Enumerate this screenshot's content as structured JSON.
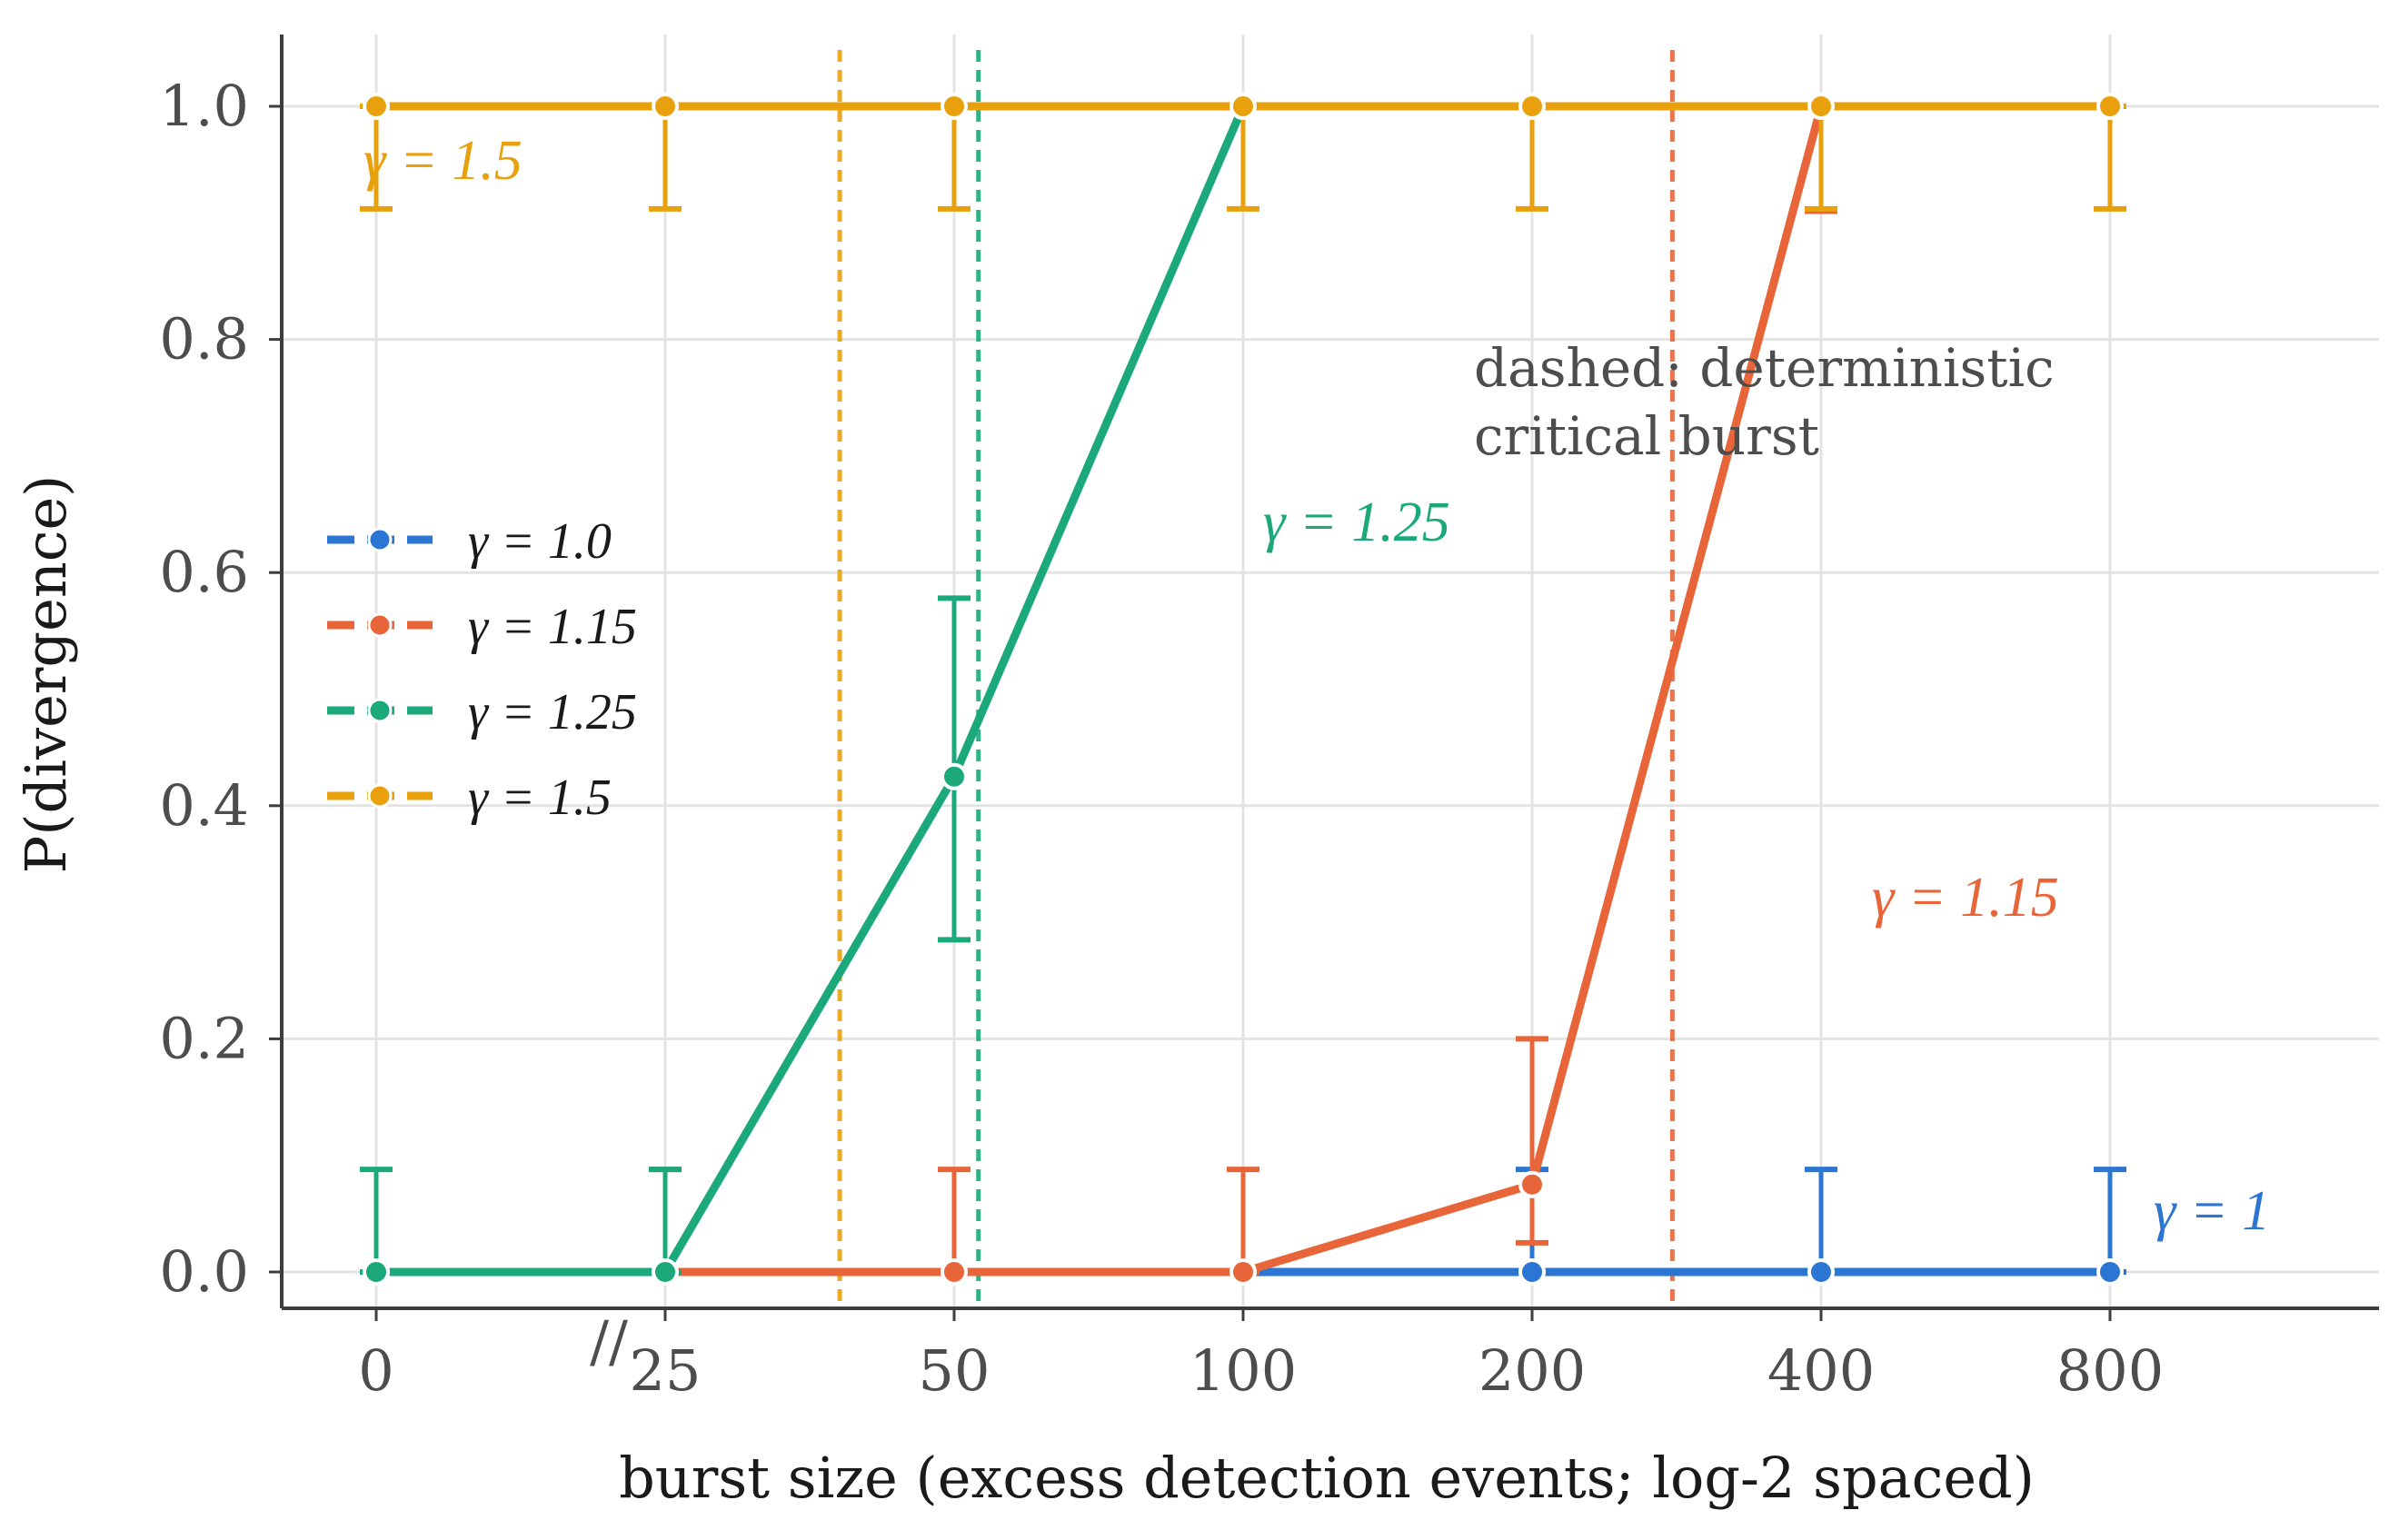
{
  "chart_data": {
    "type": "line",
    "xlabel": "burst size (excess detection events; log-2 spaced)",
    "ylabel": "P(divergence)",
    "x": [
      0,
      25,
      50,
      100,
      200,
      400,
      800
    ],
    "x_tick_labels": [
      "0",
      "25",
      "50",
      "100",
      "200",
      "400",
      "800"
    ],
    "x_axis_scale": "log2 with a broken-axis zero point",
    "axis_break_mark": "//",
    "ylim": [
      -0.03,
      1.06
    ],
    "y_ticks": [
      "0.0",
      "0.2",
      "0.4",
      "0.6",
      "0.8",
      "1.0"
    ],
    "grid": true,
    "legend_placement": "center-left",
    "series": [
      {
        "name": "γ = 1.0",
        "color": "#2B76D2",
        "x": [
          100,
          200,
          400,
          800
        ],
        "values": [
          0.0,
          0.0,
          0.0,
          0.0
        ],
        "err_lo": [
          0.0,
          0.0,
          0.0,
          0.0
        ],
        "err_hi": [
          0.0,
          0.088,
          0.088,
          0.088
        ],
        "inline_label": "γ = 1"
      },
      {
        "name": "γ = 1.15",
        "color": "#E8653A",
        "x": [
          25,
          50,
          100,
          200,
          400
        ],
        "values": [
          0.0,
          0.0,
          0.0,
          0.075,
          1.0
        ],
        "err_lo": [
          0.0,
          0.0,
          0.0,
          0.025,
          0.91
        ],
        "err_hi": [
          0.088,
          0.088,
          0.088,
          0.2,
          1.0
        ],
        "inline_label": "γ = 1.15",
        "critical_burst": 280
      },
      {
        "name": "γ = 1.25",
        "color": "#1BA97B",
        "x": [
          0,
          25,
          50,
          100
        ],
        "values": [
          0.0,
          0.0,
          0.425,
          1.0
        ],
        "err_lo": [
          0.0,
          0.0,
          0.285,
          1.0
        ],
        "err_hi": [
          0.088,
          0.088,
          0.578,
          1.0
        ],
        "inline_label": "γ = 1.25",
        "critical_burst": 53
      },
      {
        "name": "γ = 1.5",
        "color": "#E8A10C",
        "x": [
          0,
          25,
          50,
          100,
          200,
          400,
          800
        ],
        "values": [
          1.0,
          1.0,
          1.0,
          1.0,
          1.0,
          1.0,
          1.0
        ],
        "err_lo": [
          0.912,
          0.912,
          0.912,
          0.912,
          0.912,
          0.912,
          0.912
        ],
        "err_hi": [
          1.0,
          1.0,
          1.0,
          1.0,
          1.0,
          1.0,
          1.0
        ],
        "inline_label": "γ = 1.5",
        "critical_burst": 38
      }
    ],
    "annotation": [
      "dashed: deterministic",
      "critical burst"
    ]
  }
}
